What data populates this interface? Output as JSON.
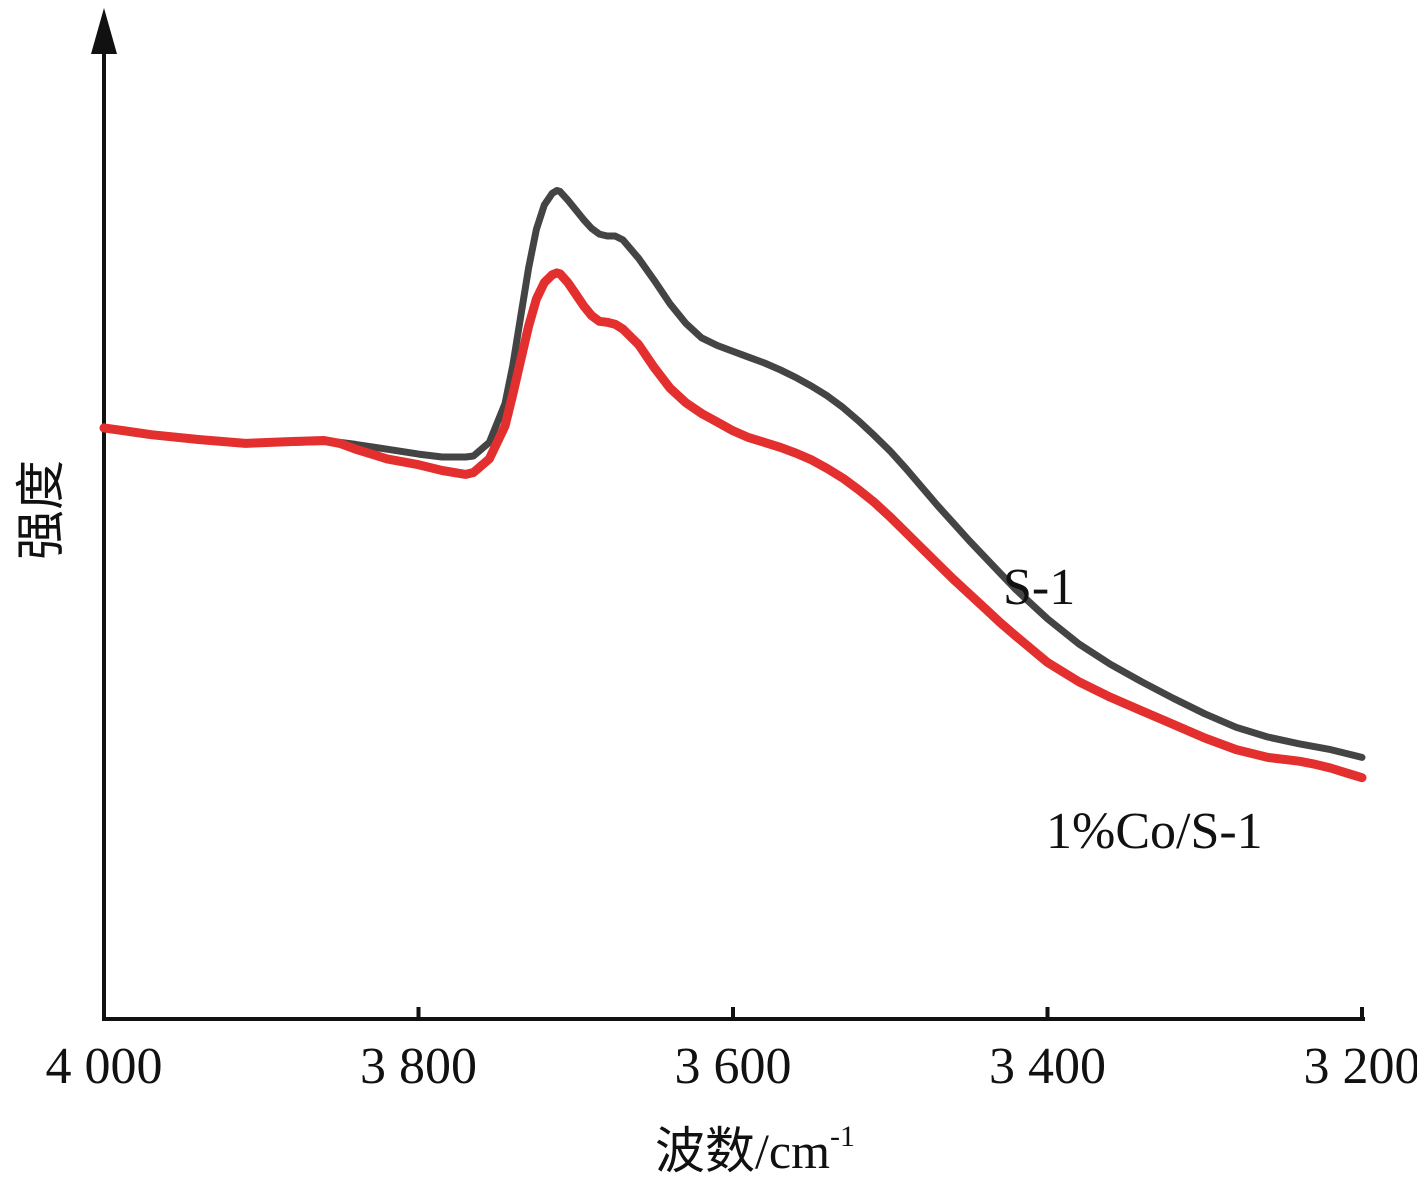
{
  "chart_data": {
    "type": "line",
    "title": "",
    "xlabel": "波数/cm",
    "xlabel_superscript": "-1",
    "ylabel": "强度",
    "x_reversed": true,
    "xlim": [
      4000,
      3200
    ],
    "ylim": [
      0,
      100
    ],
    "y_ticks_shown": false,
    "grid": false,
    "x_ticks": [
      {
        "value": 4000,
        "label": "4 000"
      },
      {
        "value": 3800,
        "label": "3 800"
      },
      {
        "value": 3600,
        "label": "3 600"
      },
      {
        "value": 3400,
        "label": "3 400"
      },
      {
        "value": 3200,
        "label": "3 200"
      }
    ],
    "series": [
      {
        "name": "S-1",
        "color": "#444444",
        "x": [
          4000,
          3970,
          3940,
          3910,
          3880,
          3860,
          3850,
          3840,
          3820,
          3800,
          3785,
          3770,
          3765,
          3755,
          3745,
          3740,
          3735,
          3730,
          3725,
          3720,
          3715,
          3712,
          3710,
          3705,
          3700,
          3695,
          3690,
          3685,
          3680,
          3675,
          3670,
          3660,
          3650,
          3640,
          3630,
          3620,
          3610,
          3600,
          3590,
          3580,
          3570,
          3560,
          3550,
          3540,
          3530,
          3520,
          3510,
          3500,
          3490,
          3480,
          3470,
          3460,
          3450,
          3440,
          3430,
          3420,
          3400,
          3380,
          3360,
          3340,
          3320,
          3300,
          3280,
          3260,
          3240,
          3230,
          3220,
          3210,
          3200
        ],
        "y": [
          61.0,
          60.3,
          59.8,
          59.4,
          59.5,
          59.6,
          59.5,
          59.3,
          58.8,
          58.3,
          58.0,
          58.0,
          58.1,
          59.5,
          63.5,
          67.5,
          72.5,
          77.5,
          81.5,
          84.0,
          85.2,
          85.5,
          85.4,
          84.5,
          83.5,
          82.5,
          81.6,
          81.0,
          80.8,
          80.8,
          80.4,
          78.5,
          76.2,
          73.8,
          71.8,
          70.3,
          69.5,
          68.9,
          68.3,
          67.7,
          67.0,
          66.2,
          65.3,
          64.3,
          63.1,
          61.7,
          60.2,
          58.6,
          56.8,
          54.9,
          53.0,
          51.2,
          49.4,
          47.7,
          46.0,
          44.3,
          41.3,
          38.7,
          36.6,
          34.8,
          33.1,
          31.5,
          30.1,
          29.1,
          28.4,
          28.1,
          27.8,
          27.4,
          27.0
        ]
      },
      {
        "name": "1%Co/S-1",
        "color": "#e3302f",
        "x": [
          4000,
          3970,
          3940,
          3910,
          3880,
          3860,
          3850,
          3840,
          3820,
          3800,
          3785,
          3770,
          3765,
          3755,
          3745,
          3740,
          3735,
          3730,
          3725,
          3720,
          3715,
          3712,
          3710,
          3705,
          3700,
          3695,
          3690,
          3685,
          3680,
          3675,
          3670,
          3660,
          3650,
          3640,
          3630,
          3620,
          3610,
          3600,
          3590,
          3580,
          3570,
          3560,
          3550,
          3540,
          3530,
          3520,
          3510,
          3500,
          3490,
          3480,
          3470,
          3460,
          3450,
          3440,
          3430,
          3420,
          3400,
          3380,
          3360,
          3340,
          3320,
          3300,
          3280,
          3260,
          3240,
          3230,
          3220,
          3210,
          3200
        ],
        "y": [
          61.0,
          60.3,
          59.8,
          59.4,
          59.6,
          59.7,
          59.4,
          58.8,
          57.8,
          57.2,
          56.6,
          56.2,
          56.4,
          57.8,
          61.2,
          64.5,
          68.0,
          71.5,
          74.3,
          76.0,
          76.8,
          77.0,
          76.9,
          76.0,
          74.8,
          73.6,
          72.6,
          72.0,
          71.9,
          71.7,
          71.2,
          69.6,
          67.2,
          65.1,
          63.6,
          62.5,
          61.6,
          60.7,
          60.0,
          59.5,
          59.0,
          58.4,
          57.7,
          56.8,
          55.8,
          54.6,
          53.3,
          51.8,
          50.2,
          48.6,
          47.0,
          45.4,
          43.9,
          42.4,
          40.9,
          39.5,
          36.8,
          34.8,
          33.2,
          31.8,
          30.4,
          29.0,
          27.8,
          27.0,
          26.6,
          26.3,
          25.9,
          25.4,
          24.9
        ]
      }
    ]
  }
}
